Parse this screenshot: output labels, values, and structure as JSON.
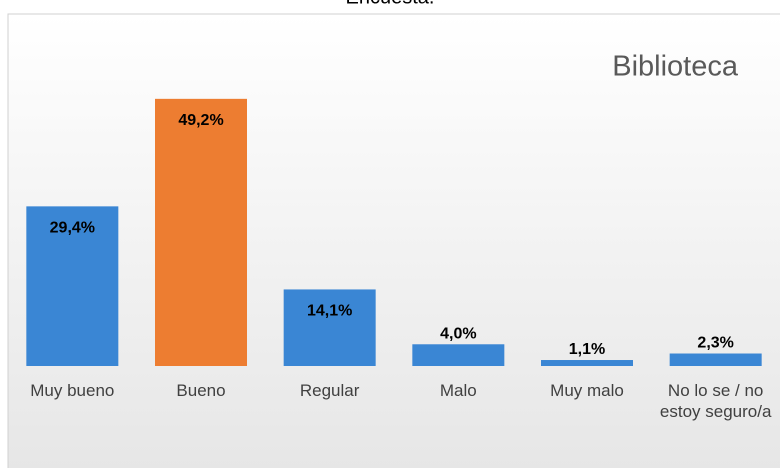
{
  "chart_data": {
    "type": "bar",
    "title": "Encuesta.",
    "subtitle": "Biblioteca",
    "categories": [
      "Muy bueno",
      "Bueno",
      "Regular",
      "Malo",
      "Muy malo",
      "No lo se / no estoy seguro/a"
    ],
    "values": [
      29.4,
      49.2,
      14.1,
      4.0,
      1.1,
      2.3
    ],
    "value_labels": [
      "29,4%",
      "49,2%",
      "14,1%",
      "4,0%",
      "1,1%",
      "2,3%"
    ],
    "colors": [
      "#3a86d4",
      "#ed7d31",
      "#3a86d4",
      "#3a86d4",
      "#3a86d4",
      "#3a86d4"
    ]
  }
}
